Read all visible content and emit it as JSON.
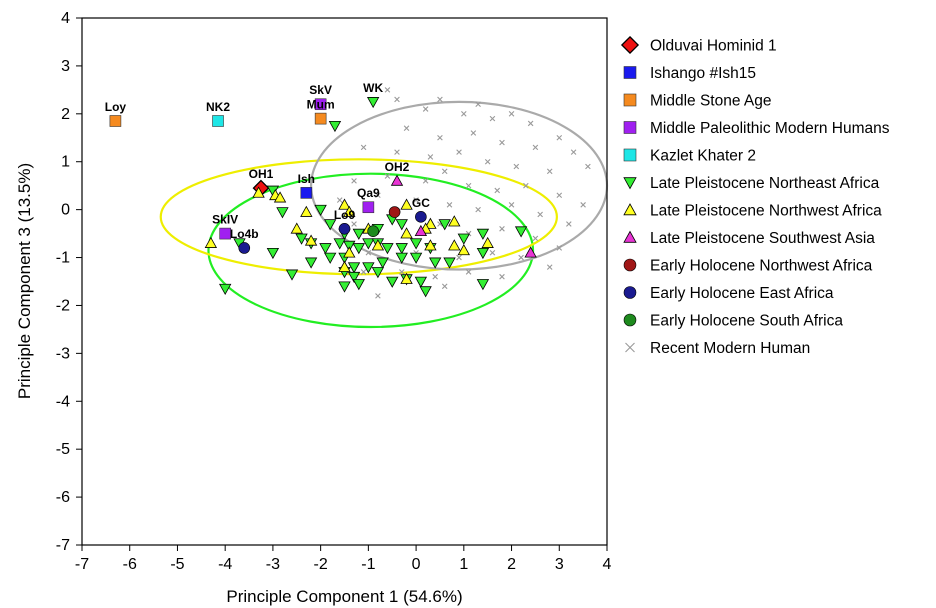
{
  "chart_data": {
    "type": "scatter",
    "title": "",
    "xlabel": "Principle Component 1 (54.6%)",
    "ylabel": "Principle Component 3 (13.5%)",
    "xlim": [
      -7,
      4
    ],
    "ylim": [
      -7,
      4
    ],
    "xticks": [
      "-7",
      "-6",
      "-5",
      "-4",
      "-3",
      "-2",
      "-1",
      "0",
      "1",
      "2",
      "3",
      "4"
    ],
    "yticks": [
      "4",
      "3",
      "2",
      "1",
      "0",
      "-1",
      "-2",
      "-3",
      "-4",
      "-5",
      "-6",
      "-7"
    ],
    "grid": false,
    "legend_position": "right",
    "series": [
      {
        "name": "Olduvai Hominid 1",
        "marker": "diamond",
        "color": "#ee1111",
        "points": [
          {
            "x": -3.25,
            "y": 0.45,
            "label": "OH1"
          }
        ]
      },
      {
        "name": "Ishango #Ish15",
        "marker": "square",
        "color": "#1a1aee",
        "points": [
          {
            "x": -2.3,
            "y": 0.35,
            "label": "Ish"
          }
        ]
      },
      {
        "name": "Middle Stone Age",
        "marker": "square",
        "color": "#f58a1f",
        "points": [
          {
            "x": -6.3,
            "y": 1.85,
            "label": "Loy"
          },
          {
            "x": -2.0,
            "y": 1.9,
            "label": "Mum"
          }
        ]
      },
      {
        "name": "Middle Paleolithic Modern Humans",
        "marker": "square",
        "color": "#a020f0",
        "points": [
          {
            "x": -2.0,
            "y": 2.2,
            "label": "SkV"
          },
          {
            "x": -4.0,
            "y": -0.5,
            "label": "SkIV"
          },
          {
            "x": -1.0,
            "y": 0.05,
            "label": "Qa9"
          }
        ]
      },
      {
        "name": "Kazlet Khater 2",
        "marker": "square",
        "color": "#1ee6e6",
        "points": [
          {
            "x": -4.15,
            "y": 1.85,
            "label": "NK2"
          }
        ]
      },
      {
        "name": "Late Pleistocene Northeast Africa",
        "marker": "triangle-down",
        "color": "#33ee33",
        "points": [
          {
            "x": -0.9,
            "y": 2.25,
            "label": "WK"
          },
          {
            "x": -1.7,
            "y": 1.75
          },
          {
            "x": -3.0,
            "y": 0.4
          },
          {
            "x": -2.8,
            "y": -0.05
          },
          {
            "x": -2.0,
            "y": 0.0
          },
          {
            "x": -1.8,
            "y": -0.3
          },
          {
            "x": -1.5,
            "y": -0.5
          },
          {
            "x": -1.2,
            "y": -0.5
          },
          {
            "x": -0.5,
            "y": -0.2
          },
          {
            "x": -0.3,
            "y": -0.3
          },
          {
            "x": -3.7,
            "y": -0.7
          },
          {
            "x": -3.0,
            "y": -0.9
          },
          {
            "x": -2.4,
            "y": -0.6
          },
          {
            "x": -2.2,
            "y": -0.7
          },
          {
            "x": -1.9,
            "y": -0.8
          },
          {
            "x": -1.6,
            "y": -0.7
          },
          {
            "x": -1.4,
            "y": -0.75
          },
          {
            "x": -1.2,
            "y": -0.8
          },
          {
            "x": -1.0,
            "y": -0.7
          },
          {
            "x": -0.8,
            "y": -0.7
          },
          {
            "x": -0.6,
            "y": -0.8
          },
          {
            "x": -0.3,
            "y": -0.8
          },
          {
            "x": 0.0,
            "y": -0.7
          },
          {
            "x": 0.3,
            "y": -0.8
          },
          {
            "x": -2.2,
            "y": -1.1
          },
          {
            "x": -1.8,
            "y": -1.0
          },
          {
            "x": -1.5,
            "y": -1.0
          },
          {
            "x": -1.3,
            "y": -1.2
          },
          {
            "x": -1.0,
            "y": -1.2
          },
          {
            "x": -0.7,
            "y": -1.1
          },
          {
            "x": -0.3,
            "y": -1.0
          },
          {
            "x": 0.0,
            "y": -1.0
          },
          {
            "x": 0.4,
            "y": -1.1
          },
          {
            "x": 0.7,
            "y": -1.1
          },
          {
            "x": -2.6,
            "y": -1.35
          },
          {
            "x": -1.5,
            "y": -1.3
          },
          {
            "x": -1.3,
            "y": -1.4
          },
          {
            "x": -0.8,
            "y": -1.3
          },
          {
            "x": -0.5,
            "y": -1.5
          },
          {
            "x": -0.2,
            "y": -1.45
          },
          {
            "x": 0.1,
            "y": -1.5
          },
          {
            "x": -1.5,
            "y": -1.6
          },
          {
            "x": -1.2,
            "y": -1.55
          },
          {
            "x": 0.2,
            "y": -1.7
          },
          {
            "x": -4.0,
            "y": -1.65
          },
          {
            "x": 1.4,
            "y": -1.55
          },
          {
            "x": 1.4,
            "y": -0.5
          },
          {
            "x": 2.2,
            "y": -0.45
          },
          {
            "x": 1.4,
            "y": -0.9
          },
          {
            "x": 1.0,
            "y": -0.6
          },
          {
            "x": 0.6,
            "y": -0.3
          },
          {
            "x": -0.8,
            "y": -0.4
          }
        ]
      },
      {
        "name": "Late Pleistocene Northwest Africa",
        "marker": "triangle-up",
        "color": "#ffff22",
        "points": [
          {
            "x": -3.3,
            "y": 0.35
          },
          {
            "x": -2.95,
            "y": 0.3
          },
          {
            "x": -2.85,
            "y": 0.25
          },
          {
            "x": -2.3,
            "y": -0.05
          },
          {
            "x": -1.5,
            "y": 0.1
          },
          {
            "x": -1.4,
            "y": -0.05
          },
          {
            "x": -1.0,
            "y": -0.4
          },
          {
            "x": -0.2,
            "y": 0.1
          },
          {
            "x": 0.3,
            "y": -0.3
          },
          {
            "x": -4.3,
            "y": -0.7
          },
          {
            "x": -2.5,
            "y": -0.4
          },
          {
            "x": -2.2,
            "y": -0.65
          },
          {
            "x": -1.4,
            "y": -0.9
          },
          {
            "x": -1.5,
            "y": -1.2
          },
          {
            "x": -0.8,
            "y": -0.75
          },
          {
            "x": -0.2,
            "y": -0.5
          },
          {
            "x": 0.2,
            "y": -0.4
          },
          {
            "x": 0.3,
            "y": -0.75
          },
          {
            "x": 0.8,
            "y": -0.25
          },
          {
            "x": 0.8,
            "y": -0.75
          },
          {
            "x": 1.0,
            "y": -0.85
          },
          {
            "x": 1.5,
            "y": -0.7
          },
          {
            "x": -0.2,
            "y": -1.45
          }
        ]
      },
      {
        "name": "Late Pleistocene Southwest Asia",
        "marker": "triangle-up",
        "color": "#e834d4",
        "points": [
          {
            "x": -0.4,
            "y": 0.6,
            "label": "OH2"
          },
          {
            "x": 2.4,
            "y": -0.9
          },
          {
            "x": 0.1,
            "y": -0.45
          }
        ]
      },
      {
        "name": "Early Holocene Northwest Africa",
        "marker": "circle",
        "color": "#a01616",
        "points": [
          {
            "x": -0.45,
            "y": -0.05
          }
        ]
      },
      {
        "name": "Early Holocene East Africa",
        "marker": "circle",
        "color": "#1a1a90",
        "points": [
          {
            "x": -1.5,
            "y": -0.4,
            "label": "Lo9"
          },
          {
            "x": -3.6,
            "y": -0.8,
            "label": "Lo4b"
          },
          {
            "x": 0.1,
            "y": -0.15,
            "label": "GC"
          }
        ]
      },
      {
        "name": "Early Holocene South Africa",
        "marker": "circle",
        "color": "#1e8a1e",
        "points": [
          {
            "x": -0.9,
            "y": -0.45
          }
        ]
      },
      {
        "name": "Recent Modern Human",
        "marker": "x",
        "color": "#999999",
        "points": [
          {
            "x": -0.6,
            "y": 2.5
          },
          {
            "x": -0.4,
            "y": 2.3
          },
          {
            "x": 0.2,
            "y": 2.1
          },
          {
            "x": 0.5,
            "y": 2.3
          },
          {
            "x": 1.0,
            "y": 2.0
          },
          {
            "x": 1.3,
            "y": 2.2
          },
          {
            "x": 1.6,
            "y": 1.9
          },
          {
            "x": 2.0,
            "y": 2.0
          },
          {
            "x": 2.4,
            "y": 1.8
          },
          {
            "x": 3.0,
            "y": 1.5
          },
          {
            "x": -0.2,
            "y": 1.7
          },
          {
            "x": 0.5,
            "y": 1.5
          },
          {
            "x": 1.2,
            "y": 1.6
          },
          {
            "x": 1.8,
            "y": 1.4
          },
          {
            "x": 2.5,
            "y": 1.3
          },
          {
            "x": 3.3,
            "y": 1.2
          },
          {
            "x": -1.1,
            "y": 1.3
          },
          {
            "x": -0.4,
            "y": 1.2
          },
          {
            "x": 0.3,
            "y": 1.1
          },
          {
            "x": 0.9,
            "y": 1.2
          },
          {
            "x": 1.5,
            "y": 1.0
          },
          {
            "x": 2.1,
            "y": 0.9
          },
          {
            "x": 2.8,
            "y": 0.8
          },
          {
            "x": 3.6,
            "y": 0.9
          },
          {
            "x": -1.3,
            "y": 0.6
          },
          {
            "x": -0.6,
            "y": 0.7
          },
          {
            "x": 0.2,
            "y": 0.6
          },
          {
            "x": 0.6,
            "y": 0.8
          },
          {
            "x": 1.1,
            "y": 0.5
          },
          {
            "x": 1.7,
            "y": 0.4
          },
          {
            "x": 2.3,
            "y": 0.5
          },
          {
            "x": 3.0,
            "y": 0.3
          },
          {
            "x": 3.5,
            "y": 0.1
          },
          {
            "x": -1.6,
            "y": 0.2
          },
          {
            "x": -0.8,
            "y": 0.3
          },
          {
            "x": 0.0,
            "y": 0.2
          },
          {
            "x": 0.7,
            "y": 0.1
          },
          {
            "x": 1.3,
            "y": 0.0
          },
          {
            "x": 2.0,
            "y": 0.1
          },
          {
            "x": 2.6,
            "y": -0.1
          },
          {
            "x": 3.2,
            "y": -0.3
          },
          {
            "x": -1.3,
            "y": -0.3
          },
          {
            "x": -0.5,
            "y": -0.2
          },
          {
            "x": 0.5,
            "y": -0.3
          },
          {
            "x": 1.1,
            "y": -0.5
          },
          {
            "x": 1.8,
            "y": -0.4
          },
          {
            "x": 2.5,
            "y": -0.6
          },
          {
            "x": 3.0,
            "y": -0.8
          },
          {
            "x": -1.0,
            "y": -0.9
          },
          {
            "x": 0.0,
            "y": -0.9
          },
          {
            "x": 0.9,
            "y": -1.0
          },
          {
            "x": 1.6,
            "y": -0.9
          },
          {
            "x": 2.2,
            "y": -1.0
          },
          {
            "x": 2.8,
            "y": -1.2
          },
          {
            "x": -1.1,
            "y": -1.3
          },
          {
            "x": -0.3,
            "y": -1.3
          },
          {
            "x": 0.4,
            "y": -1.4
          },
          {
            "x": 1.1,
            "y": -1.3
          },
          {
            "x": 1.8,
            "y": -1.4
          },
          {
            "x": -0.8,
            "y": -1.8
          },
          {
            "x": 0.6,
            "y": -1.6
          }
        ]
      }
    ],
    "ellipses": [
      {
        "series": "Late Pleistocene Northeast Africa",
        "color": "#22ee22",
        "cx": -0.95,
        "cy": -0.85,
        "rx": 3.4,
        "ry": 1.6
      },
      {
        "series": "Late Pleistocene Northwest Africa",
        "color": "#eeee00",
        "cx": -1.2,
        "cy": -0.15,
        "rx": 4.15,
        "ry": 1.2
      },
      {
        "series": "Recent Modern Human",
        "color": "#aaaaaa",
        "cx": 0.9,
        "cy": 0.5,
        "rx": 3.1,
        "ry": 1.75
      }
    ]
  }
}
